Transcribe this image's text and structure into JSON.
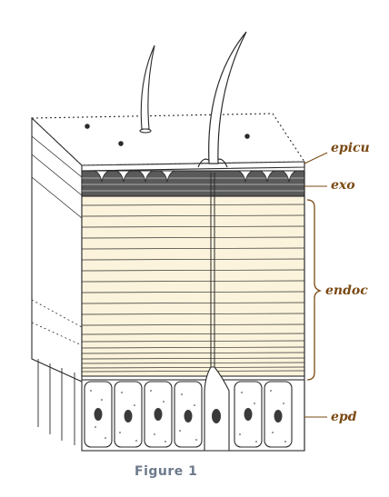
{
  "figure": {
    "caption": "Figure 1",
    "labels": {
      "epicu": "epicu",
      "exo": "exo",
      "endoc": "endoc",
      "epd": "epd"
    },
    "colors": {
      "ink": "#2a2a2a",
      "label": "#7a4a14",
      "endocuticle_fill": "#fbf3dc",
      "caption": "#6d7a8c"
    }
  }
}
